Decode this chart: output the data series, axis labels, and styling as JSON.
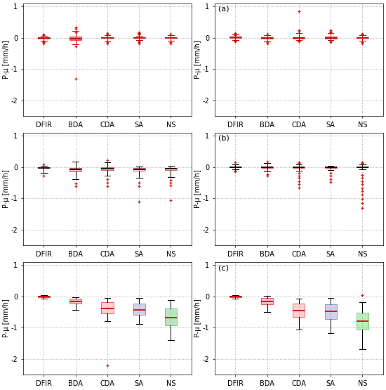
{
  "categories": [
    "DFIR",
    "BDA",
    "CDA",
    "SA",
    "NS"
  ],
  "ylabel": "P-μ [mm/h]",
  "ylim": [
    -2.5,
    1.1
  ],
  "yticks": [
    -2,
    -1,
    0,
    1
  ],
  "figsize": [
    5.5,
    5.55
  ],
  "dpi": 100,
  "panel_labels": [
    "",
    "(a)",
    "",
    "(b)",
    "",
    "(c)"
  ],
  "box_face_colors": [
    [
      "#cc0000",
      "#cc0000",
      "#cc0000",
      "#cc0000",
      "#cc0000"
    ],
    [
      "#cc0000",
      "#cc0000",
      "#cc0000",
      "#cc0000",
      "#cc0000"
    ],
    [
      "#cc0000",
      "#cc0000",
      "#cc0000",
      "#cc0000",
      "#cc0000"
    ],
    [
      "#cc0000",
      "#cc0000",
      "#cc0000",
      "#cc0000",
      "#ddaa33"
    ],
    [
      "#cc0000",
      "#dd6688",
      "#ee9988",
      "#9999cc",
      "#44bb44"
    ],
    [
      "#cc0000",
      "#dd77aa",
      "#ee9999",
      "#9999cc",
      "#55cc55"
    ]
  ],
  "box_edge_colors": [
    [
      "#cc0000",
      "#cc0000",
      "#cc0000",
      "#cc0000",
      "#cc0000"
    ],
    [
      "#cc0000",
      "#cc0000",
      "#cc0000",
      "#cc0000",
      "#cc0000"
    ],
    [
      "#cc0000",
      "#cc0000",
      "#cc0000",
      "#cc0000",
      "#cc0000"
    ],
    [
      "#cc0000",
      "#cc0000",
      "#cc0000",
      "#cc0000",
      "#cc6600"
    ],
    [
      "#cc0000",
      "#cc0000",
      "#cc0000",
      "#cc0000",
      "#33aa33"
    ],
    [
      "#cc0000",
      "#cc0000",
      "#cc0000",
      "#cc0000",
      "#33aa33"
    ]
  ],
  "median_colors": [
    [
      "#cc0000",
      "#cc0000",
      "#cc0000",
      "#cc0000",
      "#cc0000"
    ],
    [
      "#cc0000",
      "#cc0000",
      "#cc0000",
      "#cc0000",
      "#cc0000"
    ],
    [
      "#000000",
      "#000000",
      "#000000",
      "#000000",
      "#000000"
    ],
    [
      "#000000",
      "#000000",
      "#000000",
      "#000000",
      "#000000"
    ],
    [
      "#cc0000",
      "#cc0000",
      "#cc0000",
      "#cc0000",
      "#cc0000"
    ],
    [
      "#cc0000",
      "#cc0000",
      "#cc0000",
      "#cc0000",
      "#cc0000"
    ]
  ],
  "whisker_colors": [
    [
      "#cc0000",
      "#cc0000",
      "#cc0000",
      "#cc0000",
      "#cc0000"
    ],
    [
      "#cc0000",
      "#cc0000",
      "#cc0000",
      "#cc0000",
      "#cc0000"
    ],
    [
      "#000000",
      "#000000",
      "#000000",
      "#000000",
      "#000000"
    ],
    [
      "#000000",
      "#000000",
      "#000000",
      "#000000",
      "#000000"
    ],
    [
      "#000000",
      "#000000",
      "#000000",
      "#000000",
      "#000000"
    ],
    [
      "#000000",
      "#000000",
      "#000000",
      "#000000",
      "#000000"
    ]
  ],
  "plots": [
    {
      "DFIR": {
        "med": -0.01,
        "q1": -0.02,
        "q3": 0.005,
        "whislo": -0.1,
        "whishi": 0.05,
        "fliers": [
          -0.15,
          -0.18,
          -0.12,
          0.1,
          0.08
        ]
      },
      "BDA": {
        "med": -0.03,
        "q1": -0.07,
        "q3": 0.04,
        "whislo": -0.22,
        "whishi": 0.22,
        "fliers": [
          0.32,
          0.28,
          0.18,
          -0.28,
          -1.3
        ]
      },
      "CDA": {
        "med": -0.01,
        "q1": -0.015,
        "q3": 0.005,
        "whislo": -0.12,
        "whishi": 0.08,
        "fliers": [
          0.14,
          0.1,
          -0.15,
          -0.18
        ]
      },
      "SA": {
        "med": -0.01,
        "q1": -0.015,
        "q3": 0.005,
        "whislo": -0.08,
        "whishi": 0.06,
        "fliers": [
          0.15,
          0.12,
          0.1,
          0.18,
          -0.12,
          -0.14,
          -0.18
        ]
      },
      "NS": {
        "med": -0.005,
        "q1": -0.01,
        "q3": 0.01,
        "whislo": -0.1,
        "whishi": 0.08,
        "fliers": [
          0.12,
          -0.15,
          -0.18
        ]
      }
    },
    {
      "DFIR": {
        "med": 0.01,
        "q1": -0.01,
        "q3": 0.03,
        "whislo": -0.08,
        "whishi": 0.1,
        "fliers": [
          0.14,
          0.1,
          0.08,
          -0.1,
          -0.12
        ]
      },
      "BDA": {
        "med": -0.005,
        "q1": -0.02,
        "q3": 0.015,
        "whislo": -0.12,
        "whishi": 0.08,
        "fliers": [
          0.12,
          -0.15,
          -0.18
        ]
      },
      "CDA": {
        "med": -0.01,
        "q1": -0.02,
        "q3": 0.01,
        "whislo": -0.08,
        "whishi": 0.15,
        "fliers": [
          0.85,
          0.25,
          0.2,
          -0.1,
          -0.12
        ]
      },
      "SA": {
        "med": -0.005,
        "q1": -0.02,
        "q3": 0.03,
        "whislo": -0.08,
        "whishi": 0.15,
        "fliers": [
          0.2,
          0.18,
          0.25,
          -0.1,
          -0.15
        ]
      },
      "NS": {
        "med": -0.005,
        "q1": -0.015,
        "q3": 0.015,
        "whislo": -0.1,
        "whishi": 0.08,
        "fliers": [
          0.12,
          0.1,
          -0.14,
          -0.18
        ]
      }
    },
    {
      "DFIR": {
        "med": -0.02,
        "q1": -0.035,
        "q3": -0.005,
        "whislo": -0.18,
        "whishi": 0.05,
        "fliers": [
          -0.28,
          0.08
        ]
      },
      "BDA": {
        "med": -0.08,
        "q1": -0.15,
        "q3": -0.02,
        "whislo": -0.38,
        "whishi": 0.18,
        "fliers": [
          -0.52,
          -0.62
        ]
      },
      "CDA": {
        "med": -0.06,
        "q1": -0.1,
        "q3": -0.01,
        "whislo": -0.28,
        "whishi": 0.15,
        "fliers": [
          0.22,
          -0.38,
          -0.5,
          -0.62
        ]
      },
      "SA": {
        "med": -0.08,
        "q1": -0.12,
        "q3": -0.03,
        "whislo": -0.35,
        "whishi": 0.02,
        "fliers": [
          -0.5,
          -0.62,
          -1.1
        ]
      },
      "NS": {
        "med": -0.06,
        "q1": -0.1,
        "q3": -0.02,
        "whislo": -0.32,
        "whishi": 0.05,
        "fliers": [
          -0.42,
          -0.5,
          -0.6,
          -1.05
        ]
      }
    },
    {
      "DFIR": {
        "med": 0.005,
        "q1": -0.01,
        "q3": 0.025,
        "whislo": -0.08,
        "whishi": 0.08,
        "fliers": [
          0.15,
          -0.12,
          -0.15
        ]
      },
      "BDA": {
        "med": -0.005,
        "q1": -0.03,
        "q3": 0.025,
        "whislo": -0.15,
        "whishi": 0.12,
        "fliers": [
          0.18,
          -0.22,
          -0.28
        ]
      },
      "CDA": {
        "med": -0.01,
        "q1": -0.03,
        "q3": 0.005,
        "whislo": -0.12,
        "whishi": 0.08,
        "fliers": [
          0.12,
          0.15,
          -0.18,
          -0.28,
          -0.35,
          -0.45,
          -0.55,
          -0.65
        ]
      },
      "SA": {
        "med": -0.01,
        "q1": -0.025,
        "q3": 0.01,
        "whislo": -0.1,
        "whishi": 0.05,
        "fliers": [
          -0.18,
          -0.28,
          -0.38,
          -0.48
        ]
      },
      "NS": {
        "med": 0.005,
        "q1": -0.01,
        "q3": 0.025,
        "whislo": -0.08,
        "whishi": 0.08,
        "fliers": [
          0.12,
          0.15,
          -0.25,
          -0.35,
          -0.45,
          -0.55,
          -0.68,
          -0.78,
          -0.88,
          -1.02,
          -1.15,
          -1.3
        ]
      }
    },
    {
      "DFIR": {
        "med": -0.01,
        "q1": -0.03,
        "q3": 0.01,
        "whislo": -0.08,
        "whishi": 0.04,
        "fliers": []
      },
      "BDA": {
        "med": -0.15,
        "q1": -0.22,
        "q3": -0.08,
        "whislo": -0.42,
        "whishi": -0.02,
        "fliers": []
      },
      "CDA": {
        "med": -0.38,
        "q1": -0.55,
        "q3": -0.18,
        "whislo": -0.78,
        "whishi": -0.05,
        "fliers": [
          -2.2
        ]
      },
      "SA": {
        "med": -0.42,
        "q1": -0.58,
        "q3": -0.22,
        "whislo": -0.88,
        "whishi": -0.05,
        "fliers": []
      },
      "NS": {
        "med": -0.68,
        "q1": -0.92,
        "q3": -0.38,
        "whislo": -1.4,
        "whishi": -0.12,
        "fliers": []
      }
    },
    {
      "DFIR": {
        "med": -0.01,
        "q1": -0.03,
        "q3": 0.01,
        "whislo": -0.08,
        "whishi": 0.04,
        "fliers": []
      },
      "BDA": {
        "med": -0.15,
        "q1": -0.25,
        "q3": -0.05,
        "whislo": -0.5,
        "whishi": 0.02,
        "fliers": []
      },
      "CDA": {
        "med": -0.45,
        "q1": -0.65,
        "q3": -0.22,
        "whislo": -1.05,
        "whishi": -0.08,
        "fliers": []
      },
      "SA": {
        "med": -0.48,
        "q1": -0.72,
        "q3": -0.25,
        "whislo": -1.18,
        "whishi": -0.05,
        "fliers": []
      },
      "NS": {
        "med": -0.8,
        "q1": -1.05,
        "q3": -0.52,
        "whislo": -1.68,
        "whishi": -0.18,
        "fliers": [
          0.05
        ]
      }
    }
  ]
}
